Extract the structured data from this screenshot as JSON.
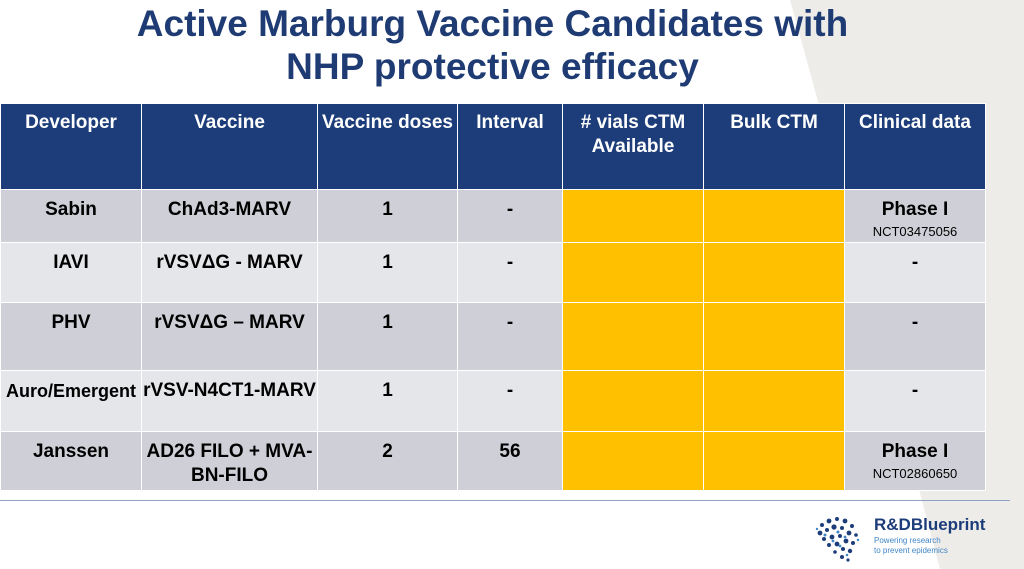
{
  "slide": {
    "title_line1": "Active Marburg Vaccine Candidates with",
    "title_line2": "NHP protective efficacy"
  },
  "table": {
    "headers": [
      "Developer",
      "Vaccine",
      "Vaccine doses",
      "Interval",
      "# vials CTM Available",
      "Bulk CTM",
      "Clinical data"
    ],
    "rows": [
      {
        "developer": "Sabin",
        "vaccine": "ChAd3-MARV",
        "doses": "1",
        "interval": "-",
        "vials": "",
        "bulk": "",
        "clinical": "Phase I",
        "clinical_id": "NCT03475056"
      },
      {
        "developer": "IAVI",
        "vaccine": "rVSVΔG - MARV",
        "doses": "1",
        "interval": "-",
        "vials": "",
        "bulk": "",
        "clinical": "-",
        "clinical_id": ""
      },
      {
        "developer": "PHV",
        "vaccine": "rVSVΔG – MARV",
        "doses": "1",
        "interval": "-",
        "vials": "",
        "bulk": "",
        "clinical": "-",
        "clinical_id": ""
      },
      {
        "developer": "Auro/Emergent",
        "vaccine": "rVSV-N4CT1-MARV",
        "doses": "1",
        "interval": "-",
        "vials": "",
        "bulk": "",
        "clinical": "-",
        "clinical_id": ""
      },
      {
        "developer": "Janssen",
        "vaccine": "AD26 FILO + MVA-BN-FILO",
        "doses": "2",
        "interval": "56",
        "vials": "",
        "bulk": "",
        "clinical": "Phase I",
        "clinical_id": "NCT02860650"
      }
    ]
  },
  "logo": {
    "name": "R&DBlueprint",
    "tagline1": "Powering research",
    "tagline2": "to prevent epidemics"
  },
  "colors": {
    "header_bg": "#1d3d7a",
    "title": "#1f3b73",
    "highlight": "#ffc000",
    "row_dark": "#cfd0d7",
    "row_light": "#e5e6ea"
  }
}
